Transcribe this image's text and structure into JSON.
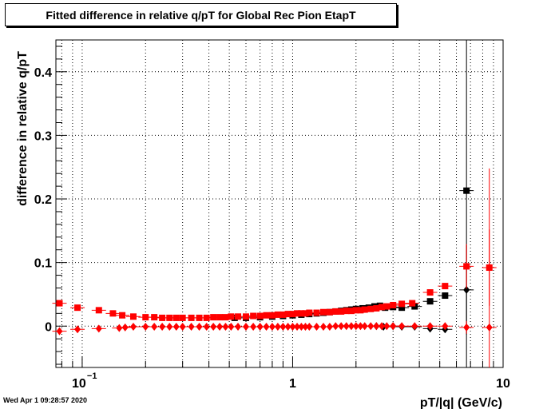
{
  "title": "Fitted difference in relative q/pT for Global Rec Pion EtapT",
  "timestamp": "Wed Apr  1 09:28:57 2020",
  "colors": {
    "black_series": "#000000",
    "red_series": "#ff0000",
    "axis": "#000000",
    "grid": "#000000"
  },
  "chart_data": {
    "type": "scatter",
    "title": "Fitted difference in relative q/pT for Global Rec Pion EtapT",
    "xlabel": "pT/|q| (GeV/c)",
    "ylabel": "difference in relative q/pT",
    "x_scale": "log",
    "xlim": [
      0.075,
      10
    ],
    "ylim": [
      -0.065,
      0.45
    ],
    "grid": true,
    "x_ticks": [
      {
        "value": 0.1,
        "label": "10",
        "exp": "−1"
      },
      {
        "value": 1,
        "label": "1",
        "exp": ""
      },
      {
        "value": 10,
        "label": "10",
        "exp": ""
      }
    ],
    "y_ticks": [
      {
        "value": 0,
        "label": "0"
      },
      {
        "value": 0.1,
        "label": "0.1"
      },
      {
        "value": 0.2,
        "label": "0.2"
      },
      {
        "value": 0.3,
        "label": "0.3"
      },
      {
        "value": 0.4,
        "label": "0.4"
      }
    ],
    "series": [
      {
        "marker": "square",
        "color": "#000000",
        "points": [
          {
            "x": 0.53,
            "y": 0.013
          },
          {
            "x": 0.6,
            "y": 0.013
          },
          {
            "x": 0.7,
            "y": 0.014
          },
          {
            "x": 0.8,
            "y": 0.015
          },
          {
            "x": 0.9,
            "y": 0.016
          },
          {
            "x": 1.0,
            "y": 0.017
          },
          {
            "x": 1.1,
            "y": 0.018
          },
          {
            "x": 1.2,
            "y": 0.019
          },
          {
            "x": 1.3,
            "y": 0.02
          },
          {
            "x": 1.4,
            "y": 0.021
          },
          {
            "x": 1.5,
            "y": 0.022
          },
          {
            "x": 1.6,
            "y": 0.023
          },
          {
            "x": 1.7,
            "y": 0.024
          },
          {
            "x": 1.8,
            "y": 0.025
          },
          {
            "x": 1.9,
            "y": 0.026
          },
          {
            "x": 2.0,
            "y": 0.027
          },
          {
            "x": 2.15,
            "y": 0.028
          },
          {
            "x": 2.3,
            "y": 0.029
          },
          {
            "x": 2.45,
            "y": 0.031
          },
          {
            "x": 2.6,
            "y": 0.032
          },
          {
            "x": 2.75,
            "y": 0.029
          },
          {
            "x": 3.0,
            "y": 0.03
          },
          {
            "x": 3.3,
            "y": 0.029
          },
          {
            "x": 3.8,
            "y": 0.031
          },
          {
            "x": 4.5,
            "y": 0.039
          },
          {
            "x": 5.3,
            "y": 0.048
          },
          {
            "x": 6.7,
            "y": 0.213,
            "err": 0.6
          }
        ]
      },
      {
        "marker": "diamond",
        "color": "#000000",
        "points": [
          {
            "x": 2.5,
            "y": 0.0
          },
          {
            "x": 2.7,
            "y": -0.001
          },
          {
            "x": 3.0,
            "y": 0.0
          },
          {
            "x": 3.3,
            "y": -0.001
          },
          {
            "x": 3.8,
            "y": -0.001
          },
          {
            "x": 4.5,
            "y": -0.004
          },
          {
            "x": 5.3,
            "y": -0.005
          },
          {
            "x": 6.7,
            "y": 0.057,
            "err": 0.07
          }
        ]
      },
      {
        "marker": "square",
        "color": "#ff0000",
        "points": [
          {
            "x": 0.078,
            "y": 0.036
          },
          {
            "x": 0.095,
            "y": 0.029
          },
          {
            "x": 0.12,
            "y": 0.025
          },
          {
            "x": 0.14,
            "y": 0.02
          },
          {
            "x": 0.155,
            "y": 0.017
          },
          {
            "x": 0.175,
            "y": 0.015
          },
          {
            "x": 0.2,
            "y": 0.014
          },
          {
            "x": 0.22,
            "y": 0.014
          },
          {
            "x": 0.24,
            "y": 0.013
          },
          {
            "x": 0.26,
            "y": 0.013
          },
          {
            "x": 0.28,
            "y": 0.013
          },
          {
            "x": 0.3,
            "y": 0.013
          },
          {
            "x": 0.33,
            "y": 0.013
          },
          {
            "x": 0.36,
            "y": 0.013
          },
          {
            "x": 0.39,
            "y": 0.013
          },
          {
            "x": 0.42,
            "y": 0.014
          },
          {
            "x": 0.45,
            "y": 0.014
          },
          {
            "x": 0.48,
            "y": 0.014
          },
          {
            "x": 0.51,
            "y": 0.015
          },
          {
            "x": 0.55,
            "y": 0.015
          },
          {
            "x": 0.6,
            "y": 0.015
          },
          {
            "x": 0.65,
            "y": 0.016
          },
          {
            "x": 0.7,
            "y": 0.016
          },
          {
            "x": 0.75,
            "y": 0.017
          },
          {
            "x": 0.8,
            "y": 0.017
          },
          {
            "x": 0.85,
            "y": 0.018
          },
          {
            "x": 0.9,
            "y": 0.018
          },
          {
            "x": 0.95,
            "y": 0.019
          },
          {
            "x": 1.0,
            "y": 0.019
          },
          {
            "x": 1.05,
            "y": 0.02
          },
          {
            "x": 1.1,
            "y": 0.02
          },
          {
            "x": 1.15,
            "y": 0.02
          },
          {
            "x": 1.2,
            "y": 0.021
          },
          {
            "x": 1.3,
            "y": 0.021
          },
          {
            "x": 1.4,
            "y": 0.022
          },
          {
            "x": 1.5,
            "y": 0.022
          },
          {
            "x": 1.6,
            "y": 0.023
          },
          {
            "x": 1.7,
            "y": 0.023
          },
          {
            "x": 1.8,
            "y": 0.024
          },
          {
            "x": 1.9,
            "y": 0.024
          },
          {
            "x": 2.0,
            "y": 0.025
          },
          {
            "x": 2.1,
            "y": 0.025
          },
          {
            "x": 2.2,
            "y": 0.026
          },
          {
            "x": 2.35,
            "y": 0.027
          },
          {
            "x": 2.5,
            "y": 0.028
          },
          {
            "x": 2.65,
            "y": 0.03
          },
          {
            "x": 2.8,
            "y": 0.031
          },
          {
            "x": 3.0,
            "y": 0.033
          },
          {
            "x": 3.3,
            "y": 0.035
          },
          {
            "x": 3.7,
            "y": 0.036
          },
          {
            "x": 4.5,
            "y": 0.053
          },
          {
            "x": 5.3,
            "y": 0.063
          },
          {
            "x": 6.7,
            "y": 0.094,
            "err": 0.035
          },
          {
            "x": 8.6,
            "y": 0.092,
            "err": 0.06
          }
        ]
      },
      {
        "marker": "diamond",
        "color": "#ff0000",
        "points": [
          {
            "x": 0.078,
            "y": -0.008
          },
          {
            "x": 0.095,
            "y": -0.005
          },
          {
            "x": 0.12,
            "y": -0.004
          },
          {
            "x": 0.15,
            "y": -0.003
          },
          {
            "x": 0.16,
            "y": -0.002
          },
          {
            "x": 0.175,
            "y": -0.001
          },
          {
            "x": 0.2,
            "y": -0.001
          },
          {
            "x": 0.22,
            "y": -0.001
          },
          {
            "x": 0.24,
            "y": -0.001
          },
          {
            "x": 0.26,
            "y": -0.001
          },
          {
            "x": 0.28,
            "y": -0.001
          },
          {
            "x": 0.3,
            "y": -0.001
          },
          {
            "x": 0.33,
            "y": -0.001
          },
          {
            "x": 0.36,
            "y": -0.001
          },
          {
            "x": 0.39,
            "y": -0.001
          },
          {
            "x": 0.42,
            "y": -0.001
          },
          {
            "x": 0.45,
            "y": -0.001
          },
          {
            "x": 0.48,
            "y": -0.001
          },
          {
            "x": 0.51,
            "y": -0.001
          },
          {
            "x": 0.55,
            "y": -0.001
          },
          {
            "x": 0.6,
            "y": -0.001
          },
          {
            "x": 0.65,
            "y": -0.001
          },
          {
            "x": 0.7,
            "y": -0.001
          },
          {
            "x": 0.75,
            "y": -0.001
          },
          {
            "x": 0.8,
            "y": -0.001
          },
          {
            "x": 0.85,
            "y": -0.001
          },
          {
            "x": 0.9,
            "y": -0.001
          },
          {
            "x": 0.95,
            "y": -0.001
          },
          {
            "x": 1.0,
            "y": -0.001
          },
          {
            "x": 1.05,
            "y": -0.001
          },
          {
            "x": 1.1,
            "y": -0.001
          },
          {
            "x": 1.15,
            "y": -0.001
          },
          {
            "x": 1.2,
            "y": -0.001
          },
          {
            "x": 1.3,
            "y": -0.001
          },
          {
            "x": 1.4,
            "y": -0.001
          },
          {
            "x": 1.5,
            "y": -0.001
          },
          {
            "x": 1.6,
            "y": 0.0
          },
          {
            "x": 1.7,
            "y": 0.0
          },
          {
            "x": 1.8,
            "y": 0.0
          },
          {
            "x": 1.9,
            "y": 0.0
          },
          {
            "x": 2.0,
            "y": 0.0
          },
          {
            "x": 2.1,
            "y": 0.0
          },
          {
            "x": 2.2,
            "y": 0.0
          },
          {
            "x": 2.35,
            "y": 0.0
          },
          {
            "x": 2.5,
            "y": 0.0
          },
          {
            "x": 2.65,
            "y": 0.0
          },
          {
            "x": 2.8,
            "y": 0.0
          },
          {
            "x": 3.0,
            "y": 0.0
          },
          {
            "x": 3.3,
            "y": 0.0
          },
          {
            "x": 3.8,
            "y": 0.0
          },
          {
            "x": 4.5,
            "y": 0.0
          },
          {
            "x": 5.3,
            "y": 0.0
          },
          {
            "x": 6.7,
            "y": -0.002,
            "err": 0.01
          },
          {
            "x": 8.6,
            "y": -0.002,
            "err": 0.25
          }
        ]
      }
    ]
  }
}
